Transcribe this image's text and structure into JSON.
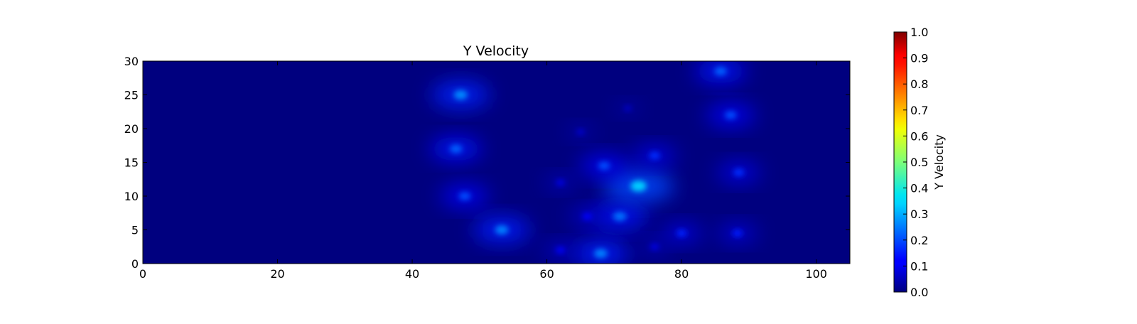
{
  "chart_data": {
    "type": "heatmap",
    "title": "Y Velocity",
    "xlabel": "",
    "ylabel": "",
    "xlim": [
      0,
      105
    ],
    "ylim": [
      0,
      30
    ],
    "x_ticks": [
      0,
      20,
      40,
      60,
      80,
      100
    ],
    "y_ticks": [
      0,
      5,
      10,
      15,
      20,
      25,
      30
    ],
    "background_value": 0.0,
    "colormap": "jet",
    "colorbar": {
      "label": "Y Velocity",
      "range": [
        0.0,
        1.0
      ],
      "ticks": [
        "0.0",
        "0.1",
        "0.2",
        "0.3",
        "0.4",
        "0.5",
        "0.6",
        "0.7",
        "0.8",
        "0.9",
        "1.0"
      ]
    },
    "features": [
      {
        "x": 47.2,
        "y": 25.0,
        "value": 0.26
      },
      {
        "x": 46.5,
        "y": 17.0,
        "value": 0.22
      },
      {
        "x": 47.8,
        "y": 10.0,
        "value": 0.2
      },
      {
        "x": 53.3,
        "y": 5.0,
        "value": 0.25
      },
      {
        "x": 68.0,
        "y": 1.5,
        "value": 0.25
      },
      {
        "x": 70.8,
        "y": 7.0,
        "value": 0.24
      },
      {
        "x": 73.6,
        "y": 11.5,
        "value": 0.33
      },
      {
        "x": 68.5,
        "y": 14.5,
        "value": 0.2
      },
      {
        "x": 76.0,
        "y": 16.0,
        "value": 0.17
      },
      {
        "x": 80.0,
        "y": 4.5,
        "value": 0.16
      },
      {
        "x": 85.8,
        "y": 28.5,
        "value": 0.22
      },
      {
        "x": 87.3,
        "y": 22.0,
        "value": 0.2
      },
      {
        "x": 88.5,
        "y": 13.5,
        "value": 0.17
      },
      {
        "x": 88.3,
        "y": 4.5,
        "value": 0.15
      },
      {
        "x": 65.0,
        "y": 19.5,
        "value": 0.08
      },
      {
        "x": 72.0,
        "y": 23.0,
        "value": 0.07
      },
      {
        "x": 62.0,
        "y": 12.0,
        "value": 0.1
      },
      {
        "x": 66.0,
        "y": 7.0,
        "value": 0.13
      },
      {
        "x": 62.0,
        "y": 2.0,
        "value": 0.12
      },
      {
        "x": 76.0,
        "y": 2.5,
        "value": 0.1
      }
    ]
  }
}
